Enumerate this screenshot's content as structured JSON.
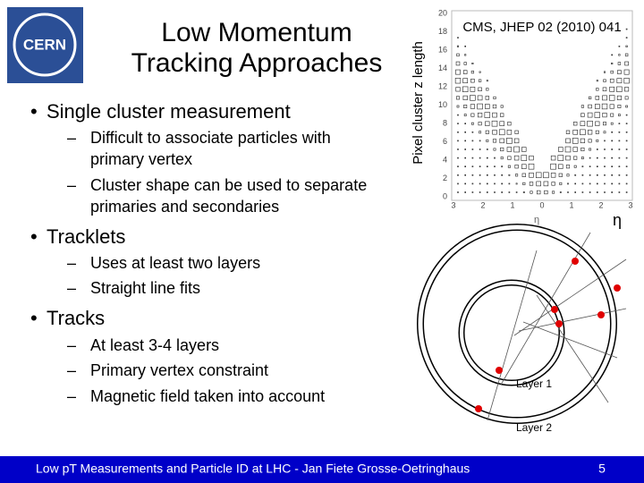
{
  "header": {
    "title_lines": [
      "Low Momentum",
      "Tracking Approaches"
    ],
    "logo_text": "CERN"
  },
  "bullets": [
    {
      "text": "Single cluster measurement",
      "sub": [
        [
          "Difficult to associate particles with",
          "primary vertex"
        ],
        [
          "Cluster shape can be used to separate",
          "primaries and  secondaries"
        ]
      ]
    },
    {
      "text": "Tracklets",
      "sub": [
        [
          "Uses at least two layers"
        ],
        [
          "Straight line fits"
        ]
      ]
    },
    {
      "text": "Tracks",
      "sub": [
        [
          "At least 3-4 layers"
        ],
        [
          "Primary vertex constraint"
        ],
        [
          "Magnetic field taken into account"
        ]
      ]
    }
  ],
  "figure": {
    "y_label": "Pixel cluster z length",
    "citation": "CMS, JHEP 02 (2010) 041",
    "y_tick_labels": [
      "0",
      "2",
      "4",
      "6",
      "8",
      "10",
      "12",
      "14",
      "16",
      "18",
      "20"
    ],
    "x_tick_labels": [
      "3",
      "2",
      "1",
      "0",
      "1",
      "2",
      "3"
    ],
    "x_label": "η",
    "x_label_large": "η"
  },
  "diagram": {
    "labels": [
      "Layer 1",
      "Layer 2"
    ]
  },
  "footer": {
    "text": "Low pT Measurements and Particle ID at LHC - Jan Fiete Grosse-Oetringhaus",
    "page": "5"
  }
}
